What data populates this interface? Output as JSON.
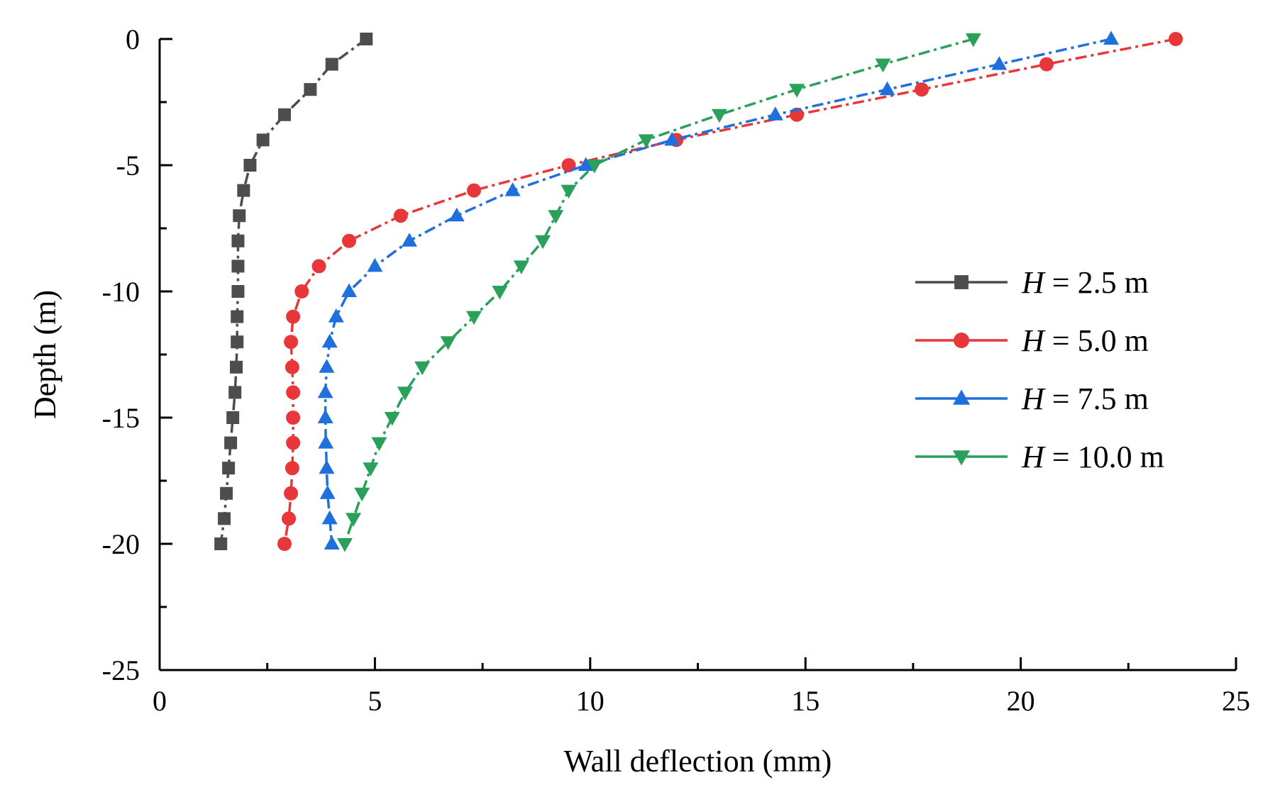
{
  "chart_data": {
    "type": "line",
    "xlabel": "Wall deflection (mm)",
    "ylabel": "Depth (m)",
    "xlim": [
      0,
      25
    ],
    "ylim": [
      -25,
      0
    ],
    "xticks": [
      0,
      5,
      10,
      15,
      20,
      25
    ],
    "yticks": [
      0,
      -5,
      -10,
      -15,
      -20,
      -25
    ],
    "xtick_labels": [
      "0",
      "5",
      "10",
      "15",
      "20",
      "25"
    ],
    "ytick_labels": [
      "0",
      "-5",
      "-10",
      "-15",
      "-20",
      "-25"
    ],
    "grid": false,
    "legend_position": "right-middle",
    "depths": [
      0,
      -1,
      -2,
      -3,
      -4,
      -5,
      -6,
      -7,
      -8,
      -9,
      -10,
      -11,
      -12,
      -13,
      -14,
      -15,
      -16,
      -17,
      -18,
      -19,
      -20
    ],
    "series": [
      {
        "name": "H = 2.5 m",
        "legend_italic": "H",
        "legend_rest": " = 2.5 m",
        "color": "#4d4d4d",
        "marker": "square",
        "x": [
          4.8,
          4.0,
          3.5,
          2.9,
          2.4,
          2.1,
          1.95,
          1.85,
          1.82,
          1.82,
          1.82,
          1.8,
          1.8,
          1.78,
          1.75,
          1.7,
          1.65,
          1.6,
          1.55,
          1.5,
          1.42
        ]
      },
      {
        "name": "H = 5.0 m",
        "legend_italic": "H",
        "legend_rest": " = 5.0 m",
        "color": "#e8373a",
        "marker": "circle",
        "x": [
          23.6,
          20.6,
          17.7,
          14.8,
          12.0,
          9.5,
          7.3,
          5.6,
          4.4,
          3.7,
          3.3,
          3.1,
          3.05,
          3.08,
          3.1,
          3.1,
          3.1,
          3.08,
          3.05,
          3.0,
          2.9
        ]
      },
      {
        "name": "H = 7.5 m",
        "legend_italic": "H",
        "legend_rest": " = 7.5 m",
        "color": "#1f6fdc",
        "marker": "triangle-up",
        "x": [
          22.1,
          19.5,
          16.9,
          14.3,
          11.9,
          9.9,
          8.2,
          6.9,
          5.8,
          5.0,
          4.4,
          4.1,
          3.95,
          3.88,
          3.85,
          3.85,
          3.86,
          3.88,
          3.9,
          3.95,
          4.0
        ]
      },
      {
        "name": "H = 10.0 m",
        "legend_italic": "H",
        "legend_rest": " = 10.0 m",
        "color": "#2aa05a",
        "marker": "triangle-down",
        "x": [
          18.9,
          16.8,
          14.8,
          13.0,
          11.3,
          10.1,
          9.5,
          9.2,
          8.9,
          8.4,
          7.9,
          7.3,
          6.7,
          6.1,
          5.7,
          5.4,
          5.1,
          4.9,
          4.7,
          4.5,
          4.3
        ]
      }
    ]
  }
}
